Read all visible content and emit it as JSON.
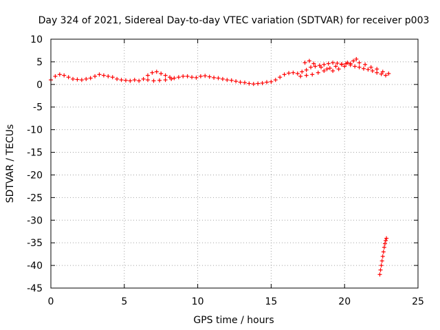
{
  "chart_data": {
    "type": "scatter",
    "title": "Day 324 of 2021, Sidereal Day-to-day VTEC variation (SDTVAR) for receiver p003",
    "xlabel": "GPS time / hours",
    "ylabel": "SDTVAR / TECUs",
    "xlim": [
      0,
      25
    ],
    "ylim": [
      -45,
      10
    ],
    "xticks": [
      0,
      5,
      10,
      15,
      20,
      25
    ],
    "yticks": [
      10,
      5,
      0,
      -5,
      -10,
      -15,
      -20,
      -25,
      -30,
      -35,
      -40,
      -45
    ],
    "grid": true,
    "marker": "+",
    "marker_color": "#ff0000",
    "series": [
      {
        "name": "SDTVAR",
        "points": [
          [
            0.0,
            1.0
          ],
          [
            0.3,
            1.8
          ],
          [
            0.6,
            2.2
          ],
          [
            0.9,
            2.0
          ],
          [
            1.2,
            1.6
          ],
          [
            1.5,
            1.2
          ],
          [
            1.8,
            1.1
          ],
          [
            2.1,
            1.0
          ],
          [
            2.4,
            1.2
          ],
          [
            2.7,
            1.4
          ],
          [
            3.0,
            1.8
          ],
          [
            3.3,
            2.2
          ],
          [
            3.6,
            2.0
          ],
          [
            3.9,
            1.8
          ],
          [
            4.2,
            1.6
          ],
          [
            4.5,
            1.2
          ],
          [
            4.8,
            1.0
          ],
          [
            5.1,
            0.9
          ],
          [
            5.4,
            0.8
          ],
          [
            5.7,
            1.0
          ],
          [
            6.0,
            0.8
          ],
          [
            6.3,
            1.2
          ],
          [
            6.6,
            2.0
          ],
          [
            6.9,
            2.6
          ],
          [
            7.2,
            2.8
          ],
          [
            7.5,
            2.4
          ],
          [
            7.8,
            2.0
          ],
          [
            8.1,
            1.6
          ],
          [
            8.4,
            1.4
          ],
          [
            8.7,
            1.6
          ],
          [
            9.0,
            1.8
          ],
          [
            9.3,
            1.8
          ],
          [
            9.6,
            1.6
          ],
          [
            9.9,
            1.5
          ],
          [
            10.2,
            1.8
          ],
          [
            10.5,
            1.9
          ],
          [
            10.8,
            1.7
          ],
          [
            11.1,
            1.5
          ],
          [
            11.4,
            1.4
          ],
          [
            11.7,
            1.2
          ],
          [
            12.0,
            1.0
          ],
          [
            12.3,
            0.9
          ],
          [
            12.6,
            0.7
          ],
          [
            12.9,
            0.5
          ],
          [
            13.2,
            0.4
          ],
          [
            13.5,
            0.2
          ],
          [
            13.8,
            0.1
          ],
          [
            14.1,
            0.2
          ],
          [
            14.4,
            0.3
          ],
          [
            14.7,
            0.5
          ],
          [
            15.0,
            0.6
          ],
          [
            15.3,
            1.0
          ],
          [
            15.6,
            1.6
          ],
          [
            15.9,
            2.2
          ],
          [
            16.2,
            2.5
          ],
          [
            16.5,
            2.6
          ],
          [
            16.8,
            2.4
          ],
          [
            17.1,
            2.8
          ],
          [
            17.4,
            3.2
          ],
          [
            17.7,
            3.8
          ],
          [
            18.0,
            4.0
          ],
          [
            18.3,
            4.2
          ],
          [
            18.6,
            4.4
          ],
          [
            18.9,
            4.6
          ],
          [
            19.2,
            4.8
          ],
          [
            19.5,
            4.7
          ],
          [
            19.8,
            4.5
          ],
          [
            20.1,
            4.6
          ],
          [
            20.4,
            4.3
          ],
          [
            20.7,
            4.0
          ],
          [
            21.0,
            3.8
          ],
          [
            21.3,
            3.5
          ],
          [
            21.6,
            3.3
          ],
          [
            21.9,
            3.0
          ],
          [
            22.2,
            2.6
          ],
          [
            22.5,
            2.3
          ],
          [
            22.8,
            2.0
          ],
          [
            17.0,
            1.8
          ],
          [
            17.4,
            2.0
          ],
          [
            17.8,
            2.2
          ],
          [
            18.2,
            2.6
          ],
          [
            18.6,
            3.0
          ],
          [
            19.0,
            3.6
          ],
          [
            19.4,
            4.0
          ],
          [
            19.8,
            4.4
          ],
          [
            20.2,
            4.8
          ],
          [
            20.6,
            5.2
          ],
          [
            21.0,
            4.8
          ],
          [
            21.4,
            4.4
          ],
          [
            21.8,
            3.8
          ],
          [
            22.2,
            3.4
          ],
          [
            22.6,
            2.8
          ],
          [
            23.0,
            2.4
          ],
          [
            17.3,
            4.8
          ],
          [
            17.6,
            5.2
          ],
          [
            17.9,
            4.6
          ],
          [
            18.4,
            3.8
          ],
          [
            18.8,
            3.4
          ],
          [
            19.2,
            3.0
          ],
          [
            19.6,
            3.4
          ],
          [
            20.0,
            4.0
          ],
          [
            20.4,
            4.6
          ],
          [
            20.8,
            5.6
          ],
          [
            6.6,
            1.0
          ],
          [
            7.0,
            0.8
          ],
          [
            7.4,
            0.9
          ],
          [
            7.8,
            1.0
          ],
          [
            8.2,
            1.2
          ],
          [
            22.4,
            -42.0
          ],
          [
            22.45,
            -41.0
          ],
          [
            22.5,
            -40.0
          ],
          [
            22.55,
            -39.0
          ],
          [
            22.6,
            -38.0
          ],
          [
            22.65,
            -37.0
          ],
          [
            22.7,
            -36.0
          ],
          [
            22.75,
            -35.2
          ],
          [
            22.8,
            -34.5
          ],
          [
            22.85,
            -34.0
          ]
        ]
      }
    ]
  }
}
